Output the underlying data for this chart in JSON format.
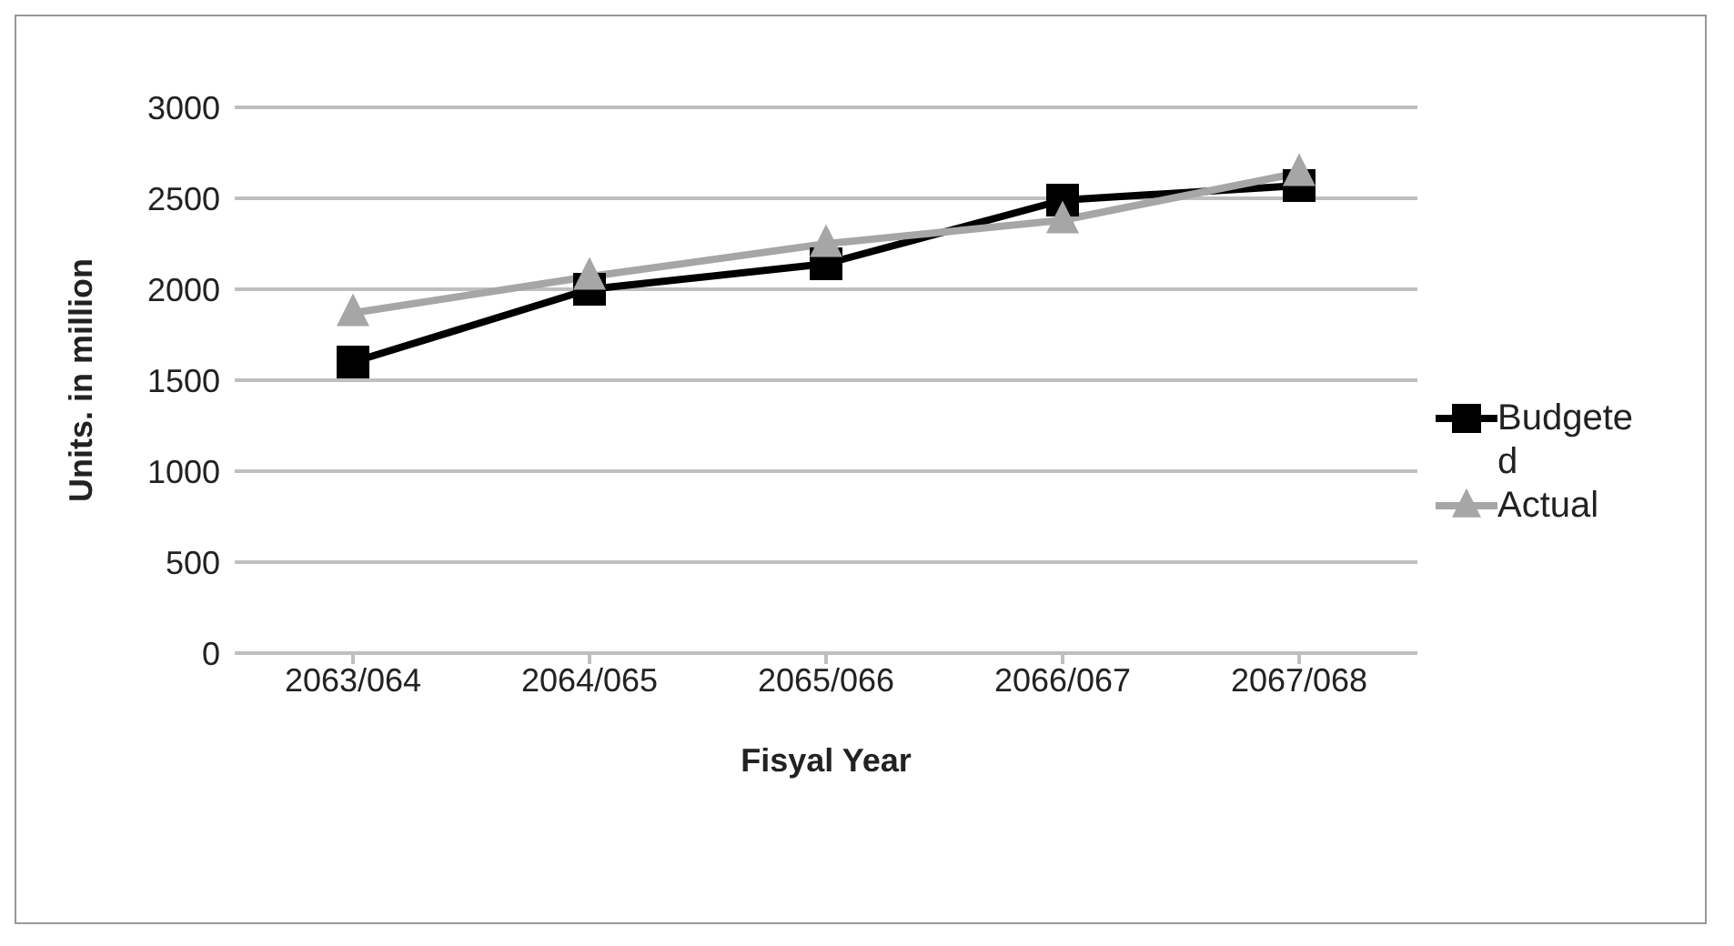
{
  "chart_data": {
    "type": "line",
    "xlabel": "Fisyal Year",
    "ylabel": "Units. in million",
    "categories": [
      "2063/064",
      "2064/065",
      "2065/066",
      "2066/067",
      "2067/068"
    ],
    "series": [
      {
        "name": "Budgeted",
        "color": "#000000",
        "values": [
          1600,
          2000,
          2140,
          2490,
          2570
        ],
        "marker": "square"
      },
      {
        "name": "Actual",
        "color": "#a6a6a6",
        "values": [
          1870,
          2070,
          2250,
          2380,
          2640
        ],
        "marker": "triangle"
      }
    ],
    "ylim": [
      0,
      3000
    ],
    "yticks": [
      0,
      500,
      1000,
      1500,
      2000,
      2500,
      3000
    ],
    "grid": "y",
    "legend": "right",
    "line_style": "solid"
  }
}
